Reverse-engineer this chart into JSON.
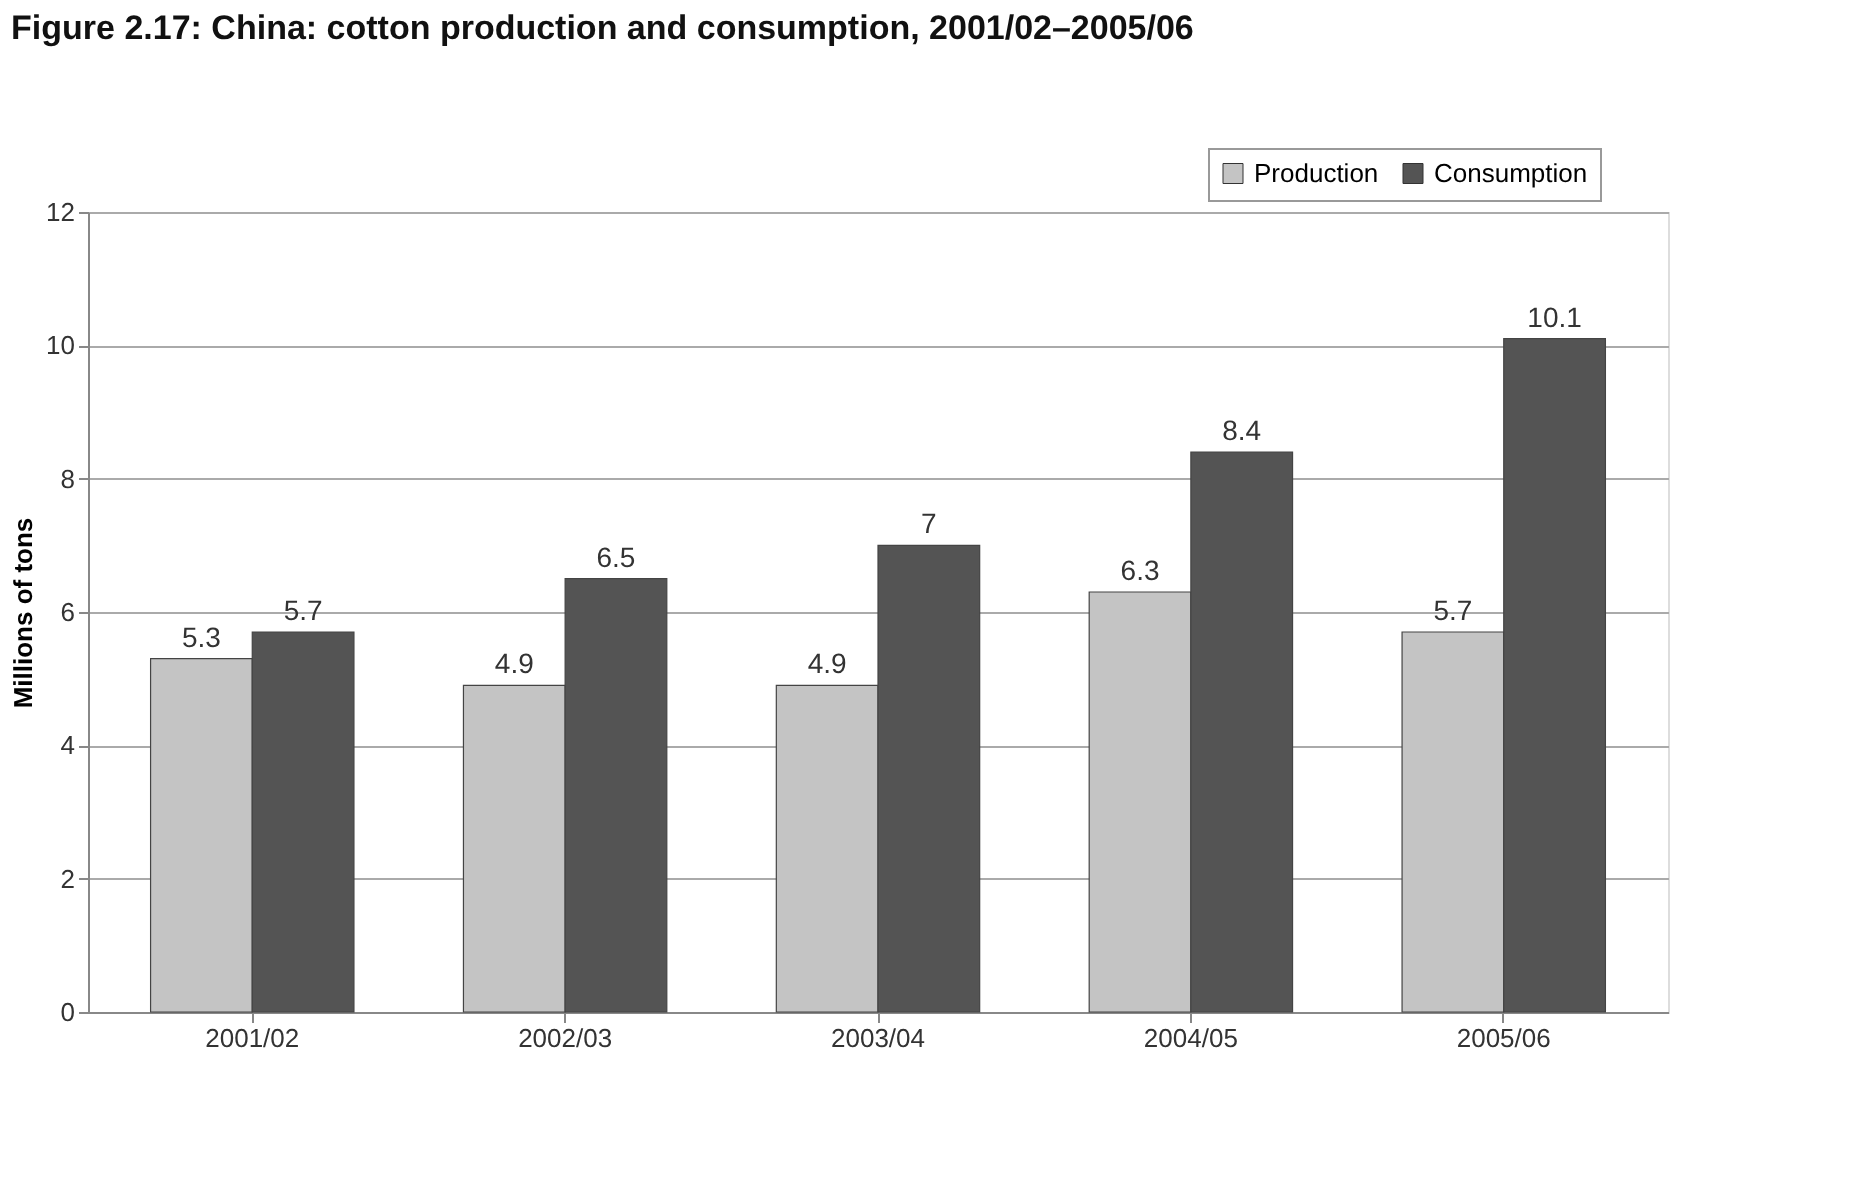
{
  "chart_data": {
    "type": "bar",
    "title": "Figure 2.17: China: cotton production and consumption, 2001/02–2005/06",
    "ylabel": "Millions of tons",
    "categories": [
      "2001/02",
      "2002/03",
      "2003/04",
      "2004/05",
      "2005/06"
    ],
    "series": [
      {
        "name": "Production",
        "color": "#c4c4c4",
        "values": [
          5.3,
          4.9,
          4.9,
          6.3,
          5.7
        ]
      },
      {
        "name": "Consumption",
        "color": "#545454",
        "values": [
          5.7,
          6.5,
          7,
          8.4,
          10.1
        ]
      }
    ],
    "ylim": [
      0,
      12
    ],
    "yticks": [
      0,
      2,
      4,
      6,
      8,
      10,
      12
    ],
    "grid": "y",
    "legend": "top right",
    "data_labels": true
  }
}
